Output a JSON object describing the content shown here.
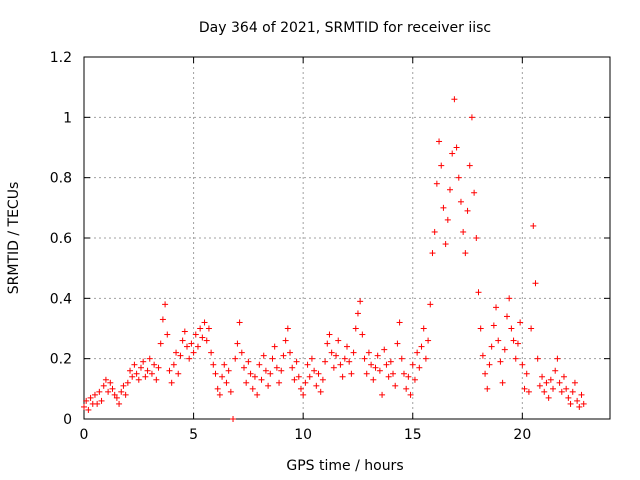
{
  "chart_data": {
    "type": "scatter",
    "title": "Day 364 of 2021, SRMTID for receiver iisc",
    "xlabel": "GPS time / hours",
    "ylabel": "SRMTID / TECUs",
    "xlim": [
      0,
      24
    ],
    "ylim": [
      0,
      1.2
    ],
    "xticks": [
      0,
      5,
      10,
      15,
      20
    ],
    "xtick_labels": [
      "0",
      "5",
      "10",
      "15",
      "20"
    ],
    "yticks": [
      0,
      0.2,
      0.4,
      0.6,
      0.8,
      1,
      1.2
    ],
    "ytick_labels": [
      "0",
      "0.2",
      "0.4",
      "0.6",
      "0.8",
      "1",
      "1.2"
    ],
    "grid": true,
    "marker": "+",
    "color": "#ff0000",
    "series": [
      {
        "name": "SRMTID",
        "points": [
          [
            0.0,
            0.04
          ],
          [
            0.1,
            0.06
          ],
          [
            0.2,
            0.03
          ],
          [
            0.3,
            0.07
          ],
          [
            0.4,
            0.05
          ],
          [
            0.5,
            0.08
          ],
          [
            0.6,
            0.05
          ],
          [
            0.7,
            0.09
          ],
          [
            0.8,
            0.06
          ],
          [
            0.9,
            0.11
          ],
          [
            1.0,
            0.13
          ],
          [
            1.1,
            0.09
          ],
          [
            1.2,
            0.12
          ],
          [
            1.3,
            0.1
          ],
          [
            1.4,
            0.08
          ],
          [
            1.5,
            0.07
          ],
          [
            1.6,
            0.05
          ],
          [
            1.7,
            0.09
          ],
          [
            1.8,
            0.11
          ],
          [
            1.9,
            0.08
          ],
          [
            2.0,
            0.12
          ],
          [
            2.1,
            0.16
          ],
          [
            2.2,
            0.14
          ],
          [
            2.3,
            0.18
          ],
          [
            2.4,
            0.15
          ],
          [
            2.5,
            0.13
          ],
          [
            2.6,
            0.17
          ],
          [
            2.7,
            0.19
          ],
          [
            2.8,
            0.14
          ],
          [
            2.9,
            0.16
          ],
          [
            3.0,
            0.2
          ],
          [
            3.1,
            0.15
          ],
          [
            3.2,
            0.18
          ],
          [
            3.3,
            0.13
          ],
          [
            3.4,
            0.17
          ],
          [
            3.5,
            0.25
          ],
          [
            3.6,
            0.33
          ],
          [
            3.7,
            0.38
          ],
          [
            3.8,
            0.28
          ],
          [
            3.9,
            0.16
          ],
          [
            4.0,
            0.12
          ],
          [
            4.1,
            0.18
          ],
          [
            4.2,
            0.22
          ],
          [
            4.3,
            0.15
          ],
          [
            4.4,
            0.21
          ],
          [
            4.5,
            0.26
          ],
          [
            4.6,
            0.29
          ],
          [
            4.7,
            0.24
          ],
          [
            4.8,
            0.2
          ],
          [
            4.9,
            0.25
          ],
          [
            5.0,
            0.22
          ],
          [
            5.1,
            0.28
          ],
          [
            5.2,
            0.24
          ],
          [
            5.3,
            0.3
          ],
          [
            5.4,
            0.27
          ],
          [
            5.5,
            0.32
          ],
          [
            5.6,
            0.26
          ],
          [
            5.7,
            0.3
          ],
          [
            5.8,
            0.22
          ],
          [
            5.9,
            0.18
          ],
          [
            6.0,
            0.15
          ],
          [
            6.1,
            0.1
          ],
          [
            6.2,
            0.08
          ],
          [
            6.3,
            0.14
          ],
          [
            6.4,
            0.18
          ],
          [
            6.5,
            0.12
          ],
          [
            6.6,
            0.16
          ],
          [
            6.7,
            0.09
          ],
          [
            6.8,
            0.0
          ],
          [
            6.9,
            0.2
          ],
          [
            7.0,
            0.25
          ],
          [
            7.1,
            0.32
          ],
          [
            7.2,
            0.22
          ],
          [
            7.3,
            0.17
          ],
          [
            7.4,
            0.12
          ],
          [
            7.5,
            0.19
          ],
          [
            7.6,
            0.15
          ],
          [
            7.7,
            0.1
          ],
          [
            7.8,
            0.14
          ],
          [
            7.9,
            0.08
          ],
          [
            8.0,
            0.18
          ],
          [
            8.1,
            0.13
          ],
          [
            8.2,
            0.21
          ],
          [
            8.3,
            0.16
          ],
          [
            8.4,
            0.11
          ],
          [
            8.5,
            0.15
          ],
          [
            8.6,
            0.2
          ],
          [
            8.7,
            0.24
          ],
          [
            8.8,
            0.17
          ],
          [
            8.9,
            0.12
          ],
          [
            9.0,
            0.16
          ],
          [
            9.1,
            0.21
          ],
          [
            9.2,
            0.26
          ],
          [
            9.3,
            0.3
          ],
          [
            9.4,
            0.22
          ],
          [
            9.5,
            0.17
          ],
          [
            9.6,
            0.13
          ],
          [
            9.7,
            0.19
          ],
          [
            9.8,
            0.14
          ],
          [
            9.9,
            0.1
          ],
          [
            10.0,
            0.08
          ],
          [
            10.1,
            0.12
          ],
          [
            10.2,
            0.18
          ],
          [
            10.3,
            0.14
          ],
          [
            10.4,
            0.2
          ],
          [
            10.5,
            0.16
          ],
          [
            10.6,
            0.11
          ],
          [
            10.7,
            0.15
          ],
          [
            10.8,
            0.09
          ],
          [
            10.9,
            0.13
          ],
          [
            11.0,
            0.19
          ],
          [
            11.1,
            0.25
          ],
          [
            11.2,
            0.28
          ],
          [
            11.3,
            0.22
          ],
          [
            11.4,
            0.17
          ],
          [
            11.5,
            0.21
          ],
          [
            11.6,
            0.26
          ],
          [
            11.7,
            0.18
          ],
          [
            11.8,
            0.14
          ],
          [
            11.9,
            0.2
          ],
          [
            12.0,
            0.24
          ],
          [
            12.1,
            0.19
          ],
          [
            12.2,
            0.15
          ],
          [
            12.3,
            0.22
          ],
          [
            12.4,
            0.3
          ],
          [
            12.5,
            0.35
          ],
          [
            12.6,
            0.39
          ],
          [
            12.7,
            0.28
          ],
          [
            12.8,
            0.2
          ],
          [
            12.9,
            0.15
          ],
          [
            13.0,
            0.22
          ],
          [
            13.1,
            0.18
          ],
          [
            13.2,
            0.13
          ],
          [
            13.3,
            0.17
          ],
          [
            13.4,
            0.21
          ],
          [
            13.5,
            0.16
          ],
          [
            13.6,
            0.08
          ],
          [
            13.7,
            0.23
          ],
          [
            13.8,
            0.18
          ],
          [
            13.9,
            0.14
          ],
          [
            14.0,
            0.19
          ],
          [
            14.1,
            0.15
          ],
          [
            14.2,
            0.11
          ],
          [
            14.3,
            0.25
          ],
          [
            14.4,
            0.32
          ],
          [
            14.5,
            0.2
          ],
          [
            14.6,
            0.15
          ],
          [
            14.7,
            0.1
          ],
          [
            14.8,
            0.14
          ],
          [
            14.9,
            0.08
          ],
          [
            15.0,
            0.18
          ],
          [
            15.1,
            0.13
          ],
          [
            15.2,
            0.22
          ],
          [
            15.3,
            0.17
          ],
          [
            15.4,
            0.24
          ],
          [
            15.5,
            0.3
          ],
          [
            15.6,
            0.2
          ],
          [
            15.7,
            0.26
          ],
          [
            15.8,
            0.38
          ],
          [
            15.9,
            0.55
          ],
          [
            16.0,
            0.62
          ],
          [
            16.1,
            0.78
          ],
          [
            16.2,
            0.92
          ],
          [
            16.3,
            0.84
          ],
          [
            16.4,
            0.7
          ],
          [
            16.5,
            0.58
          ],
          [
            16.6,
            0.66
          ],
          [
            16.7,
            0.76
          ],
          [
            16.8,
            0.88
          ],
          [
            16.9,
            1.06
          ],
          [
            17.0,
            0.9
          ],
          [
            17.1,
            0.8
          ],
          [
            17.2,
            0.72
          ],
          [
            17.3,
            0.62
          ],
          [
            17.4,
            0.55
          ],
          [
            17.5,
            0.69
          ],
          [
            17.6,
            0.84
          ],
          [
            17.7,
            1.0
          ],
          [
            17.8,
            0.75
          ],
          [
            17.9,
            0.6
          ],
          [
            18.0,
            0.42
          ],
          [
            18.1,
            0.3
          ],
          [
            18.2,
            0.21
          ],
          [
            18.3,
            0.15
          ],
          [
            18.4,
            0.1
          ],
          [
            18.5,
            0.18
          ],
          [
            18.6,
            0.24
          ],
          [
            18.7,
            0.31
          ],
          [
            18.8,
            0.37
          ],
          [
            18.9,
            0.26
          ],
          [
            19.0,
            0.19
          ],
          [
            19.1,
            0.12
          ],
          [
            19.2,
            0.23
          ],
          [
            19.3,
            0.34
          ],
          [
            19.4,
            0.4
          ],
          [
            19.5,
            0.3
          ],
          [
            19.6,
            0.26
          ],
          [
            19.7,
            0.2
          ],
          [
            19.8,
            0.25
          ],
          [
            19.9,
            0.32
          ],
          [
            20.0,
            0.18
          ],
          [
            20.1,
            0.1
          ],
          [
            20.2,
            0.15
          ],
          [
            20.3,
            0.09
          ],
          [
            20.4,
            0.3
          ],
          [
            20.5,
            0.64
          ],
          [
            20.6,
            0.45
          ],
          [
            20.7,
            0.2
          ],
          [
            20.8,
            0.11
          ],
          [
            20.9,
            0.14
          ],
          [
            21.0,
            0.09
          ],
          [
            21.1,
            0.12
          ],
          [
            21.2,
            0.07
          ],
          [
            21.3,
            0.13
          ],
          [
            21.4,
            0.1
          ],
          [
            21.5,
            0.16
          ],
          [
            21.6,
            0.2
          ],
          [
            21.7,
            0.12
          ],
          [
            21.8,
            0.09
          ],
          [
            21.9,
            0.14
          ],
          [
            22.0,
            0.1
          ],
          [
            22.1,
            0.07
          ],
          [
            22.2,
            0.05
          ],
          [
            22.3,
            0.09
          ],
          [
            22.4,
            0.12
          ],
          [
            22.5,
            0.06
          ],
          [
            22.6,
            0.04
          ],
          [
            22.7,
            0.08
          ],
          [
            22.8,
            0.05
          ]
        ]
      }
    ]
  }
}
